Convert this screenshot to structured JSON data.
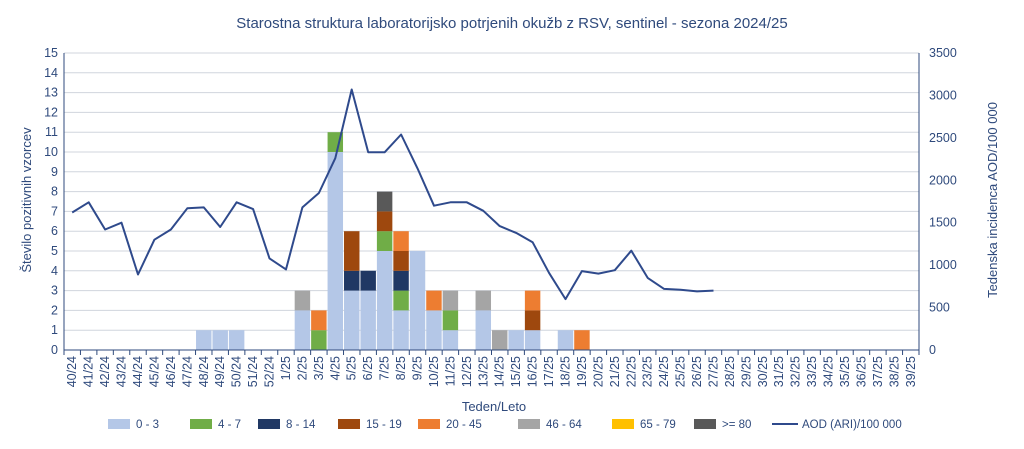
{
  "chart_data": {
    "type": "bar",
    "title": "Starostna struktura laboratorijsko potrjenih okužb z RSV, sentinel - sezona 2024/25",
    "xlabel": "Teden/Leto",
    "ylabel_left": "Število pozitivnih vzorcev",
    "ylabel_right": "Tedenska incidenca AOD/100 000",
    "ylim_left": [
      0,
      15
    ],
    "ylim_right": [
      0,
      3500
    ],
    "left_ticks": [
      "0",
      "1",
      "2",
      "3",
      "4",
      "5",
      "6",
      "7",
      "8",
      "9",
      "10",
      "11",
      "12",
      "13",
      "14",
      "15"
    ],
    "right_ticks": [
      "0",
      "500",
      "1000",
      "1500",
      "2000",
      "2500",
      "3000",
      "3500"
    ],
    "grid": true,
    "legend_position": "bottom",
    "categories": [
      "40/24",
      "41/24",
      "42/24",
      "43/24",
      "44/24",
      "45/24",
      "46/24",
      "47/24",
      "48/24",
      "49/24",
      "50/24",
      "51/24",
      "52/24",
      "1/25",
      "2/25",
      "3/25",
      "4/25",
      "5/25",
      "6/25",
      "7/25",
      "8/25",
      "9/25",
      "10/25",
      "11/25",
      "12/25",
      "13/25",
      "14/25",
      "15/25",
      "16/25",
      "17/25",
      "18/25",
      "19/25",
      "20/25",
      "21/25",
      "22/25",
      "23/25",
      "24/25",
      "25/25",
      "26/25",
      "27/25",
      "28/25",
      "29/25",
      "30/25",
      "31/25",
      "32/25",
      "33/25",
      "34/25",
      "35/25",
      "36/25",
      "37/25",
      "38/25",
      "39/25"
    ],
    "series": [
      {
        "name": "0 - 3",
        "color": "#b4c7e7",
        "values": [
          0,
          0,
          0,
          0,
          0,
          0,
          0,
          0,
          1,
          1,
          1,
          0,
          0,
          0,
          2,
          0,
          10,
          3,
          3,
          5,
          2,
          5,
          2,
          1,
          0,
          2,
          0,
          1,
          1,
          0,
          1,
          0,
          0,
          0,
          0,
          0,
          0,
          0,
          0,
          0,
          0,
          0,
          0,
          0,
          0,
          0,
          0,
          0,
          0,
          0,
          0,
          0
        ]
      },
      {
        "name": "4 - 7",
        "color": "#70ad47",
        "values": [
          0,
          0,
          0,
          0,
          0,
          0,
          0,
          0,
          0,
          0,
          0,
          0,
          0,
          0,
          0,
          1,
          1,
          0,
          0,
          1,
          1,
          0,
          0,
          1,
          0,
          0,
          0,
          0,
          0,
          0,
          0,
          0,
          0,
          0,
          0,
          0,
          0,
          0,
          0,
          0,
          0,
          0,
          0,
          0,
          0,
          0,
          0,
          0,
          0,
          0,
          0,
          0
        ]
      },
      {
        "name": "8 - 14",
        "color": "#203864",
        "values": [
          0,
          0,
          0,
          0,
          0,
          0,
          0,
          0,
          0,
          0,
          0,
          0,
          0,
          0,
          0,
          0,
          0,
          1,
          1,
          0,
          1,
          0,
          0,
          0,
          0,
          0,
          0,
          0,
          0,
          0,
          0,
          0,
          0,
          0,
          0,
          0,
          0,
          0,
          0,
          0,
          0,
          0,
          0,
          0,
          0,
          0,
          0,
          0,
          0,
          0,
          0,
          0
        ]
      },
      {
        "name": "15 - 19",
        "color": "#9e480e",
        "values": [
          0,
          0,
          0,
          0,
          0,
          0,
          0,
          0,
          0,
          0,
          0,
          0,
          0,
          0,
          0,
          0,
          0,
          2,
          0,
          1,
          1,
          0,
          0,
          0,
          0,
          0,
          0,
          0,
          1,
          0,
          0,
          0,
          0,
          0,
          0,
          0,
          0,
          0,
          0,
          0,
          0,
          0,
          0,
          0,
          0,
          0,
          0,
          0,
          0,
          0,
          0,
          0
        ]
      },
      {
        "name": "20 - 45",
        "color": "#ed7d31",
        "values": [
          0,
          0,
          0,
          0,
          0,
          0,
          0,
          0,
          0,
          0,
          0,
          0,
          0,
          0,
          0,
          1,
          0,
          0,
          0,
          0,
          1,
          0,
          1,
          0,
          0,
          0,
          0,
          0,
          1,
          0,
          0,
          1,
          0,
          0,
          0,
          0,
          0,
          0,
          0,
          0,
          0,
          0,
          0,
          0,
          0,
          0,
          0,
          0,
          0,
          0,
          0,
          0
        ]
      },
      {
        "name": "46 - 64",
        "color": "#a5a5a5",
        "values": [
          0,
          0,
          0,
          0,
          0,
          0,
          0,
          0,
          0,
          0,
          0,
          0,
          0,
          0,
          1,
          0,
          0,
          0,
          0,
          0,
          0,
          0,
          0,
          1,
          0,
          1,
          1,
          0,
          0,
          0,
          0,
          0,
          0,
          0,
          0,
          0,
          0,
          0,
          0,
          0,
          0,
          0,
          0,
          0,
          0,
          0,
          0,
          0,
          0,
          0,
          0,
          0
        ]
      },
      {
        "name": "65 - 79",
        "color": "#ffc000",
        "values": [
          0,
          0,
          0,
          0,
          0,
          0,
          0,
          0,
          0,
          0,
          0,
          0,
          0,
          0,
          0,
          0,
          0,
          0,
          0,
          0,
          0,
          0,
          0,
          0,
          0,
          0,
          0,
          0,
          0,
          0,
          0,
          0,
          0,
          0,
          0,
          0,
          0,
          0,
          0,
          0,
          0,
          0,
          0,
          0,
          0,
          0,
          0,
          0,
          0,
          0,
          0,
          0
        ]
      },
      {
        "name": ">= 80",
        "color": "#595959",
        "values": [
          0,
          0,
          0,
          0,
          0,
          0,
          0,
          0,
          0,
          0,
          0,
          0,
          0,
          0,
          0,
          0,
          0,
          0,
          0,
          1,
          0,
          0,
          0,
          0,
          0,
          0,
          0,
          0,
          0,
          0,
          0,
          0,
          0,
          0,
          0,
          0,
          0,
          0,
          0,
          0,
          0,
          0,
          0,
          0,
          0,
          0,
          0,
          0,
          0,
          0,
          0,
          0
        ]
      }
    ],
    "line": {
      "name": "AOD (ARI)/100 000",
      "color": "#2f4a8c",
      "axis": "right",
      "values": [
        1620,
        1740,
        1420,
        1500,
        890,
        1300,
        1420,
        1670,
        1680,
        1450,
        1740,
        1660,
        1080,
        950,
        1680,
        1850,
        2260,
        3070,
        2330,
        2330,
        2540,
        2140,
        1700,
        1740,
        1740,
        1640,
        1460,
        1380,
        1270,
        910,
        600,
        930,
        900,
        940,
        1170,
        850,
        720,
        710,
        690,
        700,
        null,
        null,
        null,
        null,
        null,
        null,
        null,
        null,
        null,
        null,
        null,
        null
      ]
    }
  }
}
